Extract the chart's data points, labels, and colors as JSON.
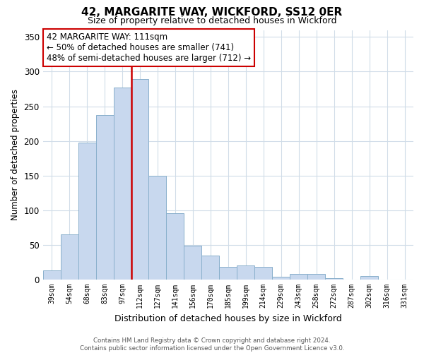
{
  "title": "42, MARGARITE WAY, WICKFORD, SS12 0ER",
  "subtitle": "Size of property relative to detached houses in Wickford",
  "xlabel": "Distribution of detached houses by size in Wickford",
  "ylabel": "Number of detached properties",
  "bar_color": "#c8d8ee",
  "bar_edge_color": "#8ab0cc",
  "vline_color": "#cc0000",
  "vline_x_index": 5,
  "annotation_title": "42 MARGARITE WAY: 111sqm",
  "annotation_line1": "← 50% of detached houses are smaller (741)",
  "annotation_line2": "48% of semi-detached houses are larger (712) →",
  "annotation_box_edge_color": "#cc0000",
  "categories": [
    "39sqm",
    "54sqm",
    "68sqm",
    "83sqm",
    "97sqm",
    "112sqm",
    "127sqm",
    "141sqm",
    "156sqm",
    "170sqm",
    "185sqm",
    "199sqm",
    "214sqm",
    "229sqm",
    "243sqm",
    "258sqm",
    "272sqm",
    "287sqm",
    "302sqm",
    "316sqm",
    "331sqm"
  ],
  "values": [
    13,
    65,
    198,
    237,
    277,
    289,
    150,
    96,
    49,
    35,
    18,
    20,
    18,
    4,
    8,
    8,
    2,
    0,
    5,
    0,
    0
  ],
  "ylim": [
    0,
    360
  ],
  "yticks": [
    0,
    50,
    100,
    150,
    200,
    250,
    300,
    350
  ],
  "footer_line1": "Contains HM Land Registry data © Crown copyright and database right 2024.",
  "footer_line2": "Contains public sector information licensed under the Open Government Licence v3.0.",
  "background_color": "#ffffff",
  "grid_color": "#d0dce8"
}
